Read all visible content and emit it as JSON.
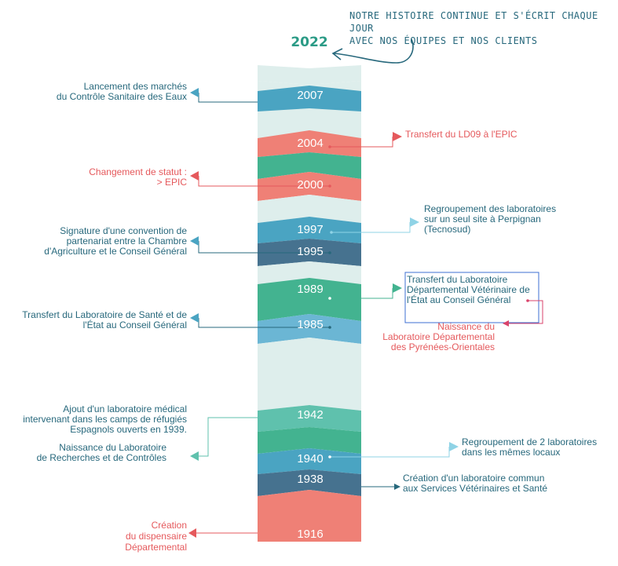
{
  "headline": "NOTRE HISTOIRE CONTINUE ET S'ÉCRIT CHAQUE JOUR\nAVEC NOS ÉQUIPES ET NOS CLIENTS",
  "current_year": "2022",
  "colors": {
    "pale": "#deeeec",
    "teal_dark": "#27687c",
    "blue": "#4aa4c2",
    "salmon": "#ef8076",
    "green": "#43b390",
    "navy": "#46728f",
    "light_blue": "#6bb6d4",
    "mint": "#5fc1ad",
    "red_text": "#e5595c",
    "sky": "#8fd3e6",
    "frame": "#3c6fd3",
    "pink": "#d9436b"
  },
  "years": {
    "y2007": "2007",
    "y2004": "2004",
    "y2000": "2000",
    "y1997": "1997",
    "y1995": "1995",
    "y1989": "1989",
    "y1985": "1985",
    "y1942": "1942",
    "y1940": "1940",
    "y1938": "1938",
    "y1916": "1916"
  },
  "events": {
    "e2007": "Lancement des marchés\ndu Contrôle Sanitaire des Eaux",
    "e2004": "Transfert du LD09 à l'EPIC",
    "e2000": "Changement de statut :\n> EPIC",
    "e1997": "Regroupement des laboratoires\nsur un seul site à Perpignan\n(Tecnosud)",
    "e1995": "Signature d'une convention de\npartenariat entre la Chambre\nd'Agriculture et le Conseil Général",
    "e1989": "Transfert du Laboratoire\nDépartemental Vétérinaire de\nl'État au Conseil Général",
    "e1989b": "Naissance du\nLaboratoire Départemental\ndes Pyrénées-Orientales",
    "e1985": "Transfert du Laboratoire de Santé et de\nl'État au Conseil Général",
    "e1942": "Ajout d'un laboratoire médical\nintervenant dans les camps de réfugiés\nEspagnols ouverts en 1939.",
    "e1942b": "Naissance du Laboratoire\nde Recherches et de Contrôles",
    "e1940": "Regroupement de 2 laboratoires\ndans les mêmes locaux",
    "e1938": "Création d'un laboratoire commun\naux Services Vétérinaires et Santé",
    "e1916": "Création\ndu dispensaire\nDépartemental"
  }
}
